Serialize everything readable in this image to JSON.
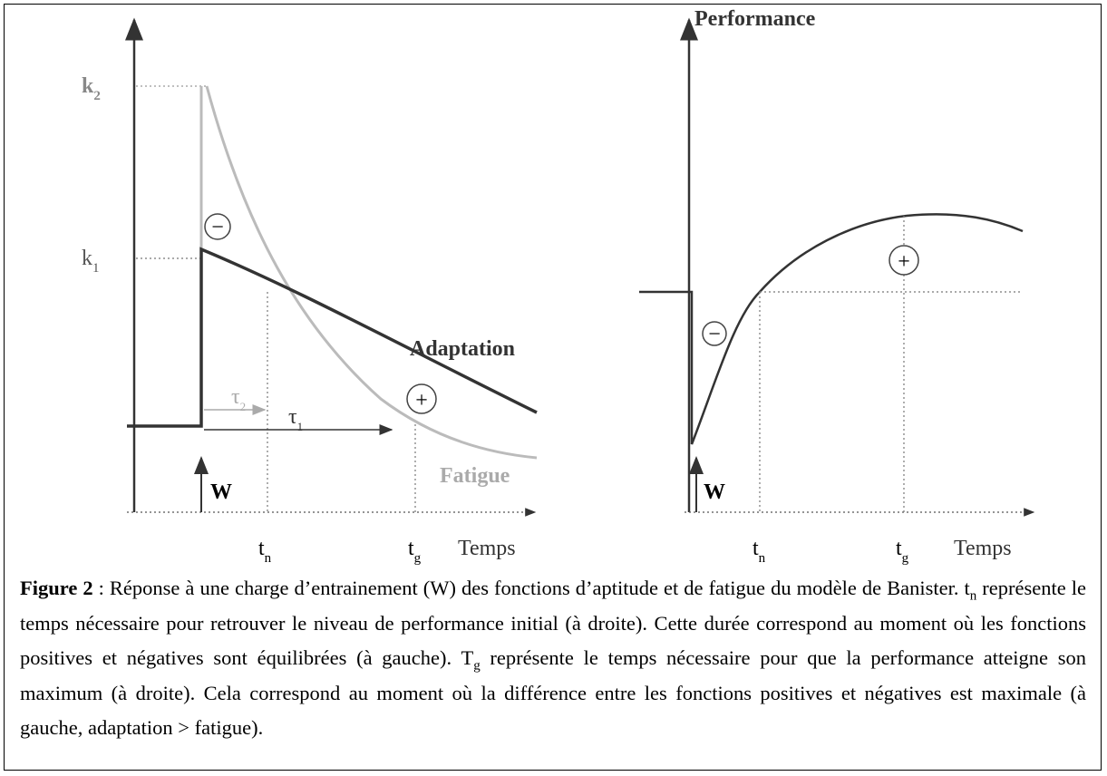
{
  "figure": {
    "left": {
      "k2": {
        "base": "k",
        "sub": "2"
      },
      "k1": {
        "base": "k",
        "sub": "1"
      },
      "adaptation": "Adaptation",
      "fatigue": "Fatigue",
      "tau2": {
        "base": "τ",
        "sub": "2"
      },
      "tau1": {
        "base": "τ",
        "sub": "1"
      },
      "w": "W",
      "tn": {
        "base": "t",
        "sub": "n"
      },
      "tg": {
        "base": "t",
        "sub": "g"
      },
      "x_label": "Temps",
      "minus": "−",
      "plus": "+"
    },
    "right": {
      "y_label": "Performance",
      "w": "W",
      "tn": {
        "base": "t",
        "sub": "n"
      },
      "tg": {
        "base": "t",
        "sub": "g"
      },
      "x_label": "Temps",
      "minus": "−",
      "plus": "+"
    }
  },
  "caption": {
    "runs": [
      {
        "text": "Figure 2",
        "style": "bold"
      },
      {
        "text": " : Réponse à une charge d’entrainement (W) des fonctions d’aptitude et de fatigue du modèle de Banister. t"
      },
      {
        "text": "n",
        "style": "sub"
      },
      {
        "text": " représente le temps nécessaire pour retrouver le niveau de performance initial (à droite). Cette durée correspond au moment où les fonctions positives et négatives sont équilibrées (à gauche). T"
      },
      {
        "text": "g",
        "style": "sub"
      },
      {
        "text": " représente le temps nécessaire pour que la performance atteigne son maximum (à droite). Cela correspond au moment où la différence entre les fonctions positives et négatives est maximale (à gauche, adaptation > fatigue)."
      }
    ]
  }
}
